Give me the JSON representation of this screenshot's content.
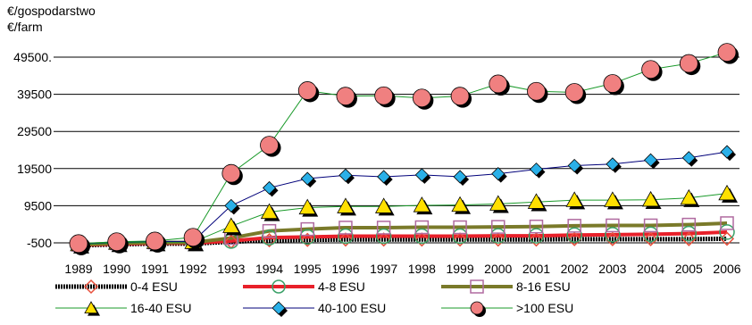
{
  "chart_data": {
    "type": "line",
    "title": "",
    "ylabel_lines": [
      "€/gospodarstwo",
      "€/farm"
    ],
    "xlabel": "",
    "x": [
      "1989",
      "1990",
      "1991",
      "1992",
      "1993",
      "1994",
      "1995",
      "1996",
      "1997",
      "1998",
      "1999",
      "2000",
      "2001",
      "2002",
      "2003",
      "2004",
      "2005",
      "2006"
    ],
    "ylim": [
      -500,
      49500
    ],
    "yticks": [
      -500,
      9500,
      19500,
      29500,
      39500,
      49500
    ],
    "ytick_labels": [
      "-500",
      "9500",
      "19500",
      "29500",
      "39500",
      "49500."
    ],
    "grid": "horizontal",
    "legend_position": "bottom",
    "series": [
      {
        "name": "0-4 ESU",
        "color": "#000000",
        "marker": "diamond-open",
        "marker_color": "#e8503c",
        "values": [
          -1200,
          -900,
          -700,
          -700,
          -200,
          200,
          300,
          400,
          400,
          400,
          400,
          400,
          400,
          500,
          500,
          500,
          500,
          600
        ]
      },
      {
        "name": "4-8 ESU",
        "color": "#e8202a",
        "marker": "circle-open",
        "marker_color": "#3aa067",
        "values": [
          -1100,
          -800,
          -600,
          -600,
          0,
          900,
          1100,
          1300,
          1300,
          1300,
          1300,
          1400,
          1400,
          1600,
          1700,
          1800,
          2000,
          2400
        ]
      },
      {
        "name": "8-16 ESU",
        "color": "#7a7a2a",
        "marker": "square-open",
        "marker_color": "#b06aa0",
        "values": [
          -1000,
          -600,
          -400,
          -400,
          800,
          2700,
          3200,
          3600,
          3600,
          3700,
          3700,
          3800,
          3900,
          4100,
          4200,
          4200,
          4400,
          4800
        ]
      },
      {
        "name": "16-40 ESU",
        "color": "#1a9a2a",
        "marker": "triangle",
        "marker_color": "#ffe000",
        "values": [
          -900,
          -500,
          -300,
          -300,
          4000,
          7800,
          9000,
          9300,
          9300,
          9600,
          9700,
          10000,
          10500,
          11000,
          11000,
          11100,
          11600,
          12800
        ]
      },
      {
        "name": "40-100 ESU",
        "color": "#00007a",
        "marker": "diamond",
        "marker_color": "#2ab0e8",
        "values": [
          -800,
          -300,
          -100,
          -100,
          9500,
          14300,
          16800,
          17700,
          17300,
          17800,
          17300,
          18100,
          19300,
          20300,
          20700,
          21800,
          22400,
          24000
        ]
      },
      {
        "name": ">100 ESU",
        "color": "#1a9a2a",
        "marker": "circle",
        "marker_color": "#f08080",
        "values": [
          -700,
          -200,
          0,
          1000,
          18200,
          25800,
          40500,
          39000,
          39100,
          38500,
          39000,
          42300,
          40300,
          40000,
          42400,
          46200,
          47800,
          50800
        ]
      }
    ]
  }
}
